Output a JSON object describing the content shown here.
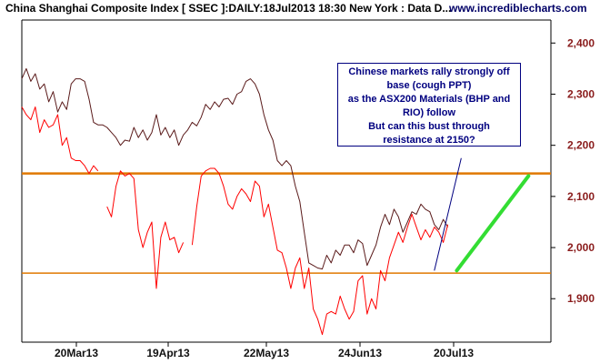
{
  "header": {
    "title": "China Shanghai Composite Index [ SSEC ]:DAILY:18Jul2013 18:30 New York : Data D...",
    "site": "www.incrediblecharts.com"
  },
  "annotation": {
    "lines": [
      "Chinese markets rally strongly off",
      "base (cough PPT)",
      "as the ASX200 Materials (BHP and",
      "RIO) follow",
      "But can this bust through",
      "resistance at 2150?"
    ]
  },
  "colors": {
    "ssec": "#5a1a1a",
    "asx200_materials": "#ff0000",
    "resistance": "#e07800",
    "support": "#e07800",
    "trend": "#33dd33",
    "annotation": "#000080"
  },
  "chart_data": {
    "type": "line",
    "title": "China Shanghai Composite Index [ SSEC ]:DAILY:18Jul2013 18:30 New York : Data D...",
    "x_ticks": [
      "20Mar13",
      "19Apr13",
      "22May13",
      "24Jun13",
      "20Jul13"
    ],
    "y_ticks": [
      1900,
      2000,
      2100,
      2200,
      2300,
      2400
    ],
    "ylim": [
      1815,
      2445
    ],
    "xlim": [
      0,
      118
    ],
    "grid": false,
    "series": [
      {
        "name": "",
        "role": "ssec",
        "x": [
          0,
          1,
          2,
          3,
          4,
          5,
          6,
          7,
          8,
          9,
          10,
          11,
          12,
          13,
          14,
          15,
          16,
          17,
          18,
          19,
          20,
          21,
          22,
          23,
          24,
          25,
          26,
          27,
          28,
          29,
          30,
          31,
          32,
          33,
          34,
          35,
          36,
          37,
          38,
          39,
          40,
          41,
          42,
          43,
          44,
          45,
          46,
          47,
          48,
          49,
          50,
          51,
          52,
          53,
          54,
          55,
          56,
          57,
          58,
          59,
          60,
          61,
          62,
          63,
          64,
          65,
          66,
          67,
          68,
          69,
          70,
          71,
          72,
          73,
          74,
          75,
          76,
          77,
          78,
          79,
          80,
          81,
          82,
          83,
          84,
          85,
          86,
          87,
          88,
          89,
          90,
          91,
          92,
          93,
          94,
          95
        ],
        "y": [
          2330,
          2350,
          2325,
          2340,
          2310,
          2320,
          2285,
          2305,
          2265,
          2285,
          2270,
          2320,
          2330,
          2330,
          2325,
          2290,
          2245,
          2240,
          2240,
          2235,
          2225,
          2215,
          2200,
          2210,
          2208,
          2235,
          2215,
          2230,
          2210,
          2225,
          2260,
          2220,
          2235,
          2215,
          2230,
          2200,
          2220,
          2230,
          2245,
          2238,
          2255,
          2280,
          2270,
          2285,
          2275,
          2290,
          2292,
          2280,
          2300,
          2305,
          2325,
          2330,
          2320,
          2300,
          2260,
          2230,
          2210,
          2170,
          2160,
          2170,
          2160,
          2120,
          2090,
          2030,
          1970,
          1965,
          1960,
          1958,
          1985,
          1970,
          1995,
          1985,
          2005,
          2005,
          1990,
          2015,
          2008,
          1965,
          1985,
          2005,
          2040,
          2065,
          2045,
          2075,
          2060,
          2030,
          2050,
          2070,
          2065,
          2085,
          2075,
          2070,
          2045,
          2035,
          2055,
          2040
        ],
        "gaps": []
      },
      {
        "name": "",
        "role": "asx200_materials",
        "x": [
          0,
          1,
          2,
          3,
          4,
          5,
          6,
          7,
          8,
          9,
          10,
          11,
          12,
          13,
          14,
          15,
          16,
          17,
          18,
          19,
          20,
          21,
          22,
          23,
          24,
          25,
          26,
          27,
          28,
          29,
          30,
          31,
          32,
          33,
          34,
          35,
          36,
          37,
          38,
          39,
          40,
          41,
          42,
          43,
          44,
          45,
          46,
          47,
          48,
          49,
          50,
          51,
          52,
          53,
          54,
          55,
          56,
          57,
          58,
          59,
          60,
          61,
          62,
          63,
          64,
          65,
          66,
          67,
          68,
          69,
          70,
          71,
          72,
          73,
          74,
          75,
          76,
          77,
          78,
          79,
          80,
          81,
          82,
          83,
          84,
          85,
          86,
          87,
          88,
          89,
          90,
          91,
          92,
          93,
          94,
          95
        ],
        "y": [
          2275,
          2260,
          2250,
          2275,
          2225,
          2250,
          2235,
          2240,
          2260,
          2200,
          2215,
          2175,
          2170,
          2170,
          2160,
          2145,
          2160,
          2150,
          null,
          2080,
          2060,
          2120,
          2150,
          2140,
          2145,
          2135,
          2035,
          2000,
          2030,
          2050,
          1920,
          2020,
          2050,
          2015,
          2020,
          1990,
          2010,
          null,
          2005,
          2080,
          2140,
          2150,
          2155,
          2155,
          2145,
          2120,
          2085,
          2075,
          2100,
          2115,
          2105,
          2090,
          2130,
          2120,
          2060,
          2085,
          2040,
          1995,
          1990,
          1960,
          1920,
          1960,
          1980,
          1920,
          1960,
          1880,
          1860,
          1830,
          1870,
          1875,
          1870,
          1905,
          1880,
          1860,
          1875,
          1935,
          1945,
          1870,
          1900,
          1880,
          1955,
          1935,
          1980,
          2005,
          2030,
          2010,
          2040,
          2065,
          2040,
          2015,
          2035,
          2020,
          2040,
          2030,
          2010,
          2045
        ],
        "gaps": [
          18,
          37
        ]
      }
    ],
    "reference_lines": [
      {
        "role": "resistance",
        "y": 2145
      },
      {
        "role": "support",
        "y": 1950
      }
    ],
    "trend_line": {
      "from": [
        97,
        1955
      ],
      "to": [
        113,
        2140
      ]
    },
    "annotation_pointer": {
      "from": [
        98,
        2175
      ],
      "to": [
        92,
        1955
      ]
    }
  }
}
